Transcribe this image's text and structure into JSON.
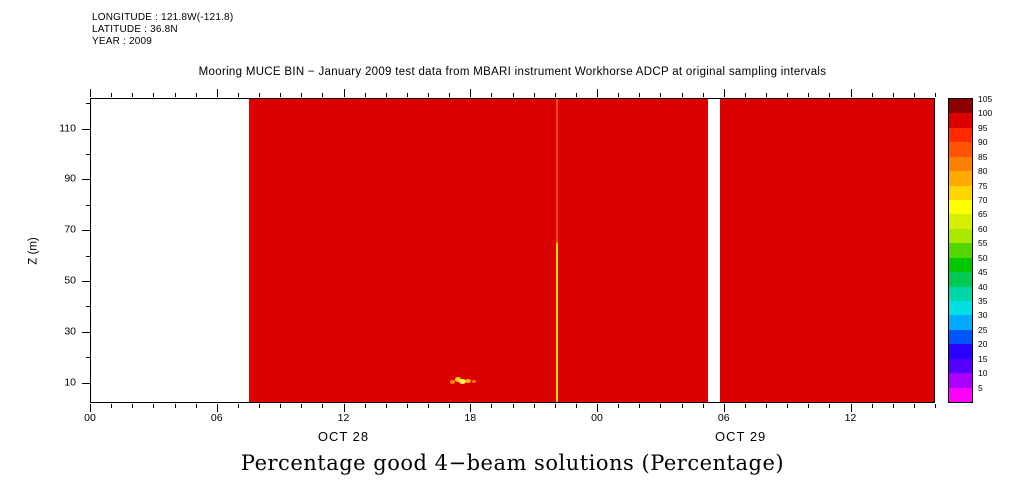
{
  "header": {
    "longitude": "LONGITUDE : 121.8W(-121.8)",
    "latitude": "LATITUDE : 36.8N",
    "year": "YEAR : 2009"
  },
  "plot_title": "Mooring MUCE BIN − January 2009 test data from MBARI instrument Workhorse ADCP at original sampling intervals",
  "caption": "Percentage good 4−beam solutions (Percentage)",
  "y_axis": {
    "label": "Z (m)",
    "major_ticks": [
      10,
      30,
      50,
      70,
      90,
      110
    ],
    "minor_step": 10,
    "range": [
      2,
      122
    ]
  },
  "x_axis": {
    "range_hours": [
      0,
      40
    ],
    "minor_step": 1,
    "major_ticks": [
      {
        "t": 0,
        "label": "00"
      },
      {
        "t": 6,
        "label": "06"
      },
      {
        "t": 12,
        "label": "12"
      },
      {
        "t": 18,
        "label": "18"
      },
      {
        "t": 24,
        "label": "00"
      },
      {
        "t": 30,
        "label": "06"
      },
      {
        "t": 36,
        "label": "12"
      }
    ],
    "date_labels": [
      {
        "t": 12,
        "label": "OCT 28"
      },
      {
        "t": 30.8,
        "label": "OCT 29"
      }
    ]
  },
  "chart_data": {
    "type": "heatmap",
    "title": "Percentage good 4-beam solutions (Percentage)",
    "xlabel_dates": [
      "OCT 28",
      "OCT 29"
    ],
    "ylabel": "Z (m)",
    "value_units": "percent",
    "value_range": [
      0,
      105
    ],
    "data_color": "#DD0000",
    "no_data_color": "#FFFFFF",
    "regions": [
      {
        "name": "no-data-start",
        "kind": "blank",
        "t0": 0,
        "t1": 7.5,
        "value": null
      },
      {
        "name": "good-data-block-1",
        "kind": "data",
        "t0": 7.5,
        "t1": 29.3,
        "value": 100
      },
      {
        "name": "data-gap",
        "kind": "blank",
        "t0": 29.3,
        "t1": 29.85,
        "value": null
      },
      {
        "name": "good-data-block-2",
        "kind": "data",
        "t0": 29.85,
        "t1": 40,
        "value": 100
      }
    ],
    "streak": {
      "t": 22.1,
      "z_split": 65,
      "upper_color": "#F05000",
      "lower_color": "#FFE000",
      "approx_value_lower": 65,
      "approx_value_upper": 90
    },
    "spots": [
      {
        "t": 17.15,
        "z": 10,
        "w": 5,
        "h": 4,
        "color": "#FF9000"
      },
      {
        "t": 17.4,
        "z": 11,
        "w": 6,
        "h": 5,
        "color": "#FFD000"
      },
      {
        "t": 17.65,
        "z": 10,
        "w": 7,
        "h": 5,
        "color": "#FFF060"
      },
      {
        "t": 17.9,
        "z": 10.5,
        "w": 6,
        "h": 4,
        "color": "#FFB000"
      },
      {
        "t": 18.15,
        "z": 10,
        "w": 4,
        "h": 3,
        "color": "#FF8000"
      }
    ]
  },
  "colorbar": {
    "cells_top_to_bottom": [
      {
        "value": 105,
        "color": "#8B0000"
      },
      {
        "value": 100,
        "color": "#DD0000"
      },
      {
        "value": 95,
        "color": "#FF2A00"
      },
      {
        "value": 90,
        "color": "#FF5500"
      },
      {
        "value": 85,
        "color": "#FF8000"
      },
      {
        "value": 80,
        "color": "#FFAA00"
      },
      {
        "value": 75,
        "color": "#FFD500"
      },
      {
        "value": 70,
        "color": "#FFFF00"
      },
      {
        "value": 65,
        "color": "#D4F000"
      },
      {
        "value": 60,
        "color": "#AAE800"
      },
      {
        "value": 55,
        "color": "#55D500"
      },
      {
        "value": 50,
        "color": "#00C800"
      },
      {
        "value": 45,
        "color": "#00C855"
      },
      {
        "value": 40,
        "color": "#00D5AA"
      },
      {
        "value": 35,
        "color": "#00E0E0"
      },
      {
        "value": 30,
        "color": "#00AAFF"
      },
      {
        "value": 25,
        "color": "#0055FF"
      },
      {
        "value": 20,
        "color": "#2A00FF"
      },
      {
        "value": 15,
        "color": "#5500FF"
      },
      {
        "value": 10,
        "color": "#AA00FF"
      },
      {
        "value": 5,
        "color": "#FF00FF"
      }
    ]
  }
}
